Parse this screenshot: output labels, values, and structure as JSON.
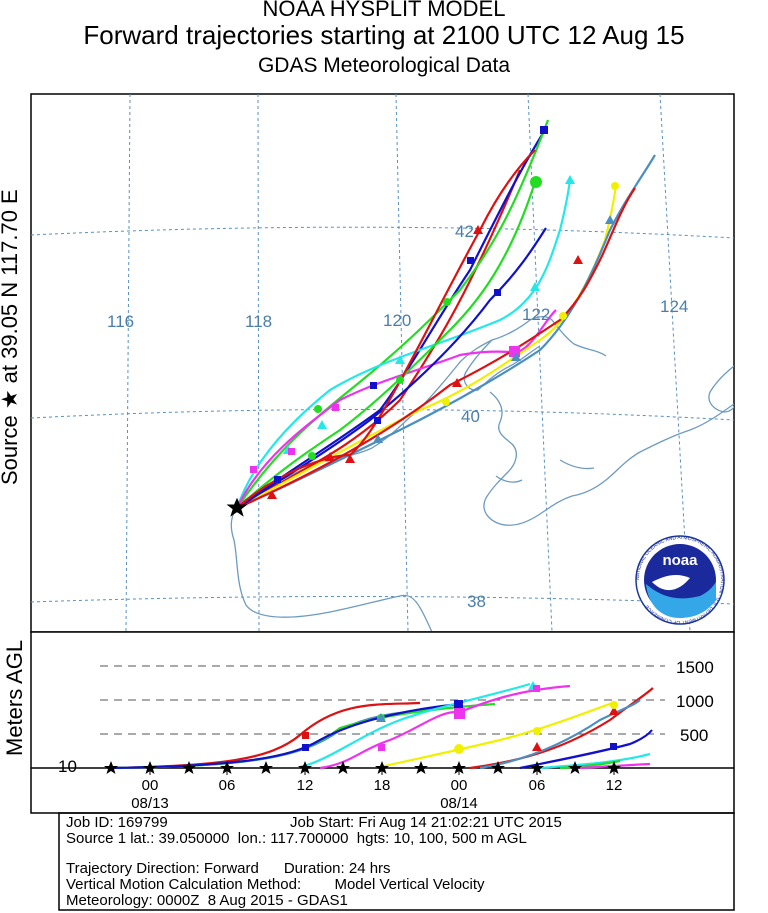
{
  "titles": {
    "line1": "NOAA HYSPLIT MODEL",
    "line2": "Forward trajectories starting at 2100 UTC 12 Aug 15",
    "line3": "GDAS Meteorological Data"
  },
  "side_label": "Source ★ at   39.05 N   117.70 E",
  "map": {
    "lon_labels": [
      "116",
      "118",
      "120",
      "122",
      "124"
    ],
    "lat_labels": [
      "42",
      "40",
      "38"
    ],
    "gridline_color": "#5a8fc0",
    "coast_color": "#6d9bbf",
    "logo_text": "noaa",
    "logo_ring_text": "NATIONAL OCEANIC AND ATMOSPHERIC ADMINISTRATION · U.S. DEPARTMENT OF COMMERCE"
  },
  "height_panel": {
    "ylabel": "Meters AGL",
    "levels": [
      "1500",
      "1000",
      "500"
    ],
    "base_level": "10",
    "time_ticks": [
      "00",
      "06",
      "12",
      "18",
      "00",
      "06",
      "12"
    ],
    "date_labels": [
      "08/13",
      "08/14"
    ]
  },
  "info": {
    "line1a": "Job ID: 169799",
    "line1b": "Job Start: Fri Aug 14 21:02:21 UTC 2015",
    "line2": "Source 1 lat.: 39.050000  lon.: 117.700000  hgts: 10, 100, 500 m AGL",
    "line3": "Trajectory Direction: Forward      Duration: 24 hrs",
    "line4": "Vertical Motion Calculation Method:        Model Vertical Velocity",
    "line5": "Meteorology: 0000Z  8 Aug 2015 - GDAS1"
  },
  "trajectory_colors": {
    "red": "#dd1111",
    "blue": "#1111cc",
    "green": "#22dd22",
    "cyan": "#22e8e8",
    "magenta": "#ee33ee",
    "yellow": "#f0f000",
    "steelblue": "#4a8fc0"
  }
}
